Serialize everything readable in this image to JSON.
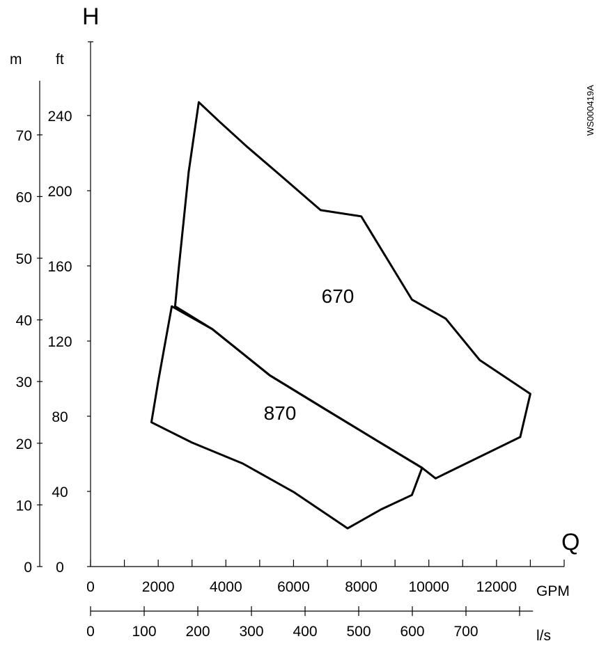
{
  "chart_data": {
    "type": "area",
    "title": "",
    "code": "WS000419A",
    "x_axis_letter": "Q",
    "y_axis_letter": "H",
    "x_axes": [
      {
        "unit": "GPM",
        "range": [
          0,
          14000
        ],
        "ticks": [
          0,
          2000,
          4000,
          6000,
          8000,
          10000,
          12000
        ],
        "tick_step": 1000
      },
      {
        "unit": "l/s",
        "range": [
          0,
          820
        ],
        "ticks": [
          0,
          100,
          200,
          300,
          400,
          500,
          600,
          700
        ],
        "tick_step": 100
      }
    ],
    "y_axes": [
      {
        "unit": "m",
        "range": [
          0,
          80
        ],
        "ticks": [
          0,
          10,
          20,
          30,
          40,
          50,
          60,
          70
        ]
      },
      {
        "unit": "ft",
        "range": [
          0,
          260
        ],
        "ticks": [
          0,
          40,
          80,
          120,
          160,
          200,
          240
        ]
      }
    ],
    "series": [
      {
        "name": "670",
        "x_unit": "GPM",
        "y_unit": "m",
        "points": [
          [
            3200,
            75.3
          ],
          [
            3800,
            72.2
          ],
          [
            4600,
            68.2
          ],
          [
            5600,
            63.5
          ],
          [
            6800,
            57.8
          ],
          [
            8000,
            56.8
          ],
          [
            9500,
            43.3
          ],
          [
            10500,
            40.2
          ],
          [
            11500,
            33.5
          ],
          [
            13000,
            28.0
          ],
          [
            12700,
            21.0
          ],
          [
            10200,
            14.3
          ],
          [
            9800,
            16.0
          ],
          [
            8500,
            20.3
          ],
          [
            7000,
            25.3
          ],
          [
            5300,
            31.0
          ],
          [
            3600,
            38.5
          ],
          [
            2500,
            42.2
          ],
          [
            2600,
            48.0
          ],
          [
            2900,
            64.0
          ]
        ]
      },
      {
        "name": "870",
        "x_unit": "GPM",
        "y_unit": "m",
        "points": [
          [
            2400,
            42.2
          ],
          [
            3600,
            38.5
          ],
          [
            5300,
            31.0
          ],
          [
            7000,
            25.3
          ],
          [
            8500,
            20.3
          ],
          [
            9800,
            16.0
          ],
          [
            9500,
            11.6
          ],
          [
            8600,
            9.3
          ],
          [
            7600,
            6.2
          ],
          [
            6000,
            12.1
          ],
          [
            4500,
            16.7
          ],
          [
            3000,
            20.1
          ],
          [
            1800,
            23.4
          ],
          [
            2000,
            30.0
          ]
        ]
      }
    ]
  }
}
